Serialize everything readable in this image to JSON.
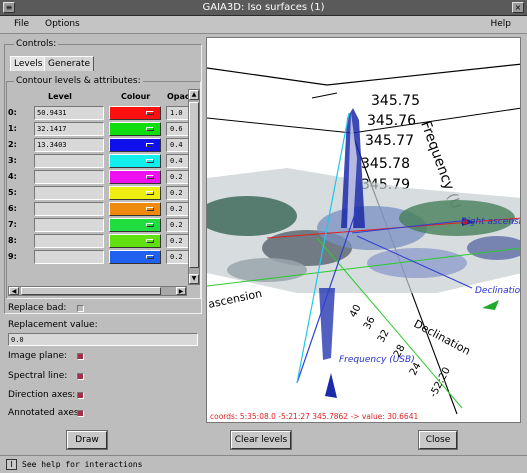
{
  "window": {
    "title": "GAIA3D: Iso surfaces (1)",
    "close_glyph": "×",
    "menu_glyph": "≡"
  },
  "menubar": {
    "file": "File",
    "options": "Options",
    "help": "Help"
  },
  "controls": {
    "group_label": "Controls:",
    "tabs": [
      "Levels",
      "Generate"
    ],
    "contour_group_label": "Contour levels & attributes:",
    "headers": {
      "level": "Level",
      "colour": "Colour",
      "opacity": "Opac"
    },
    "rows": [
      {
        "index": "0:",
        "level": "50.9431",
        "color": "#ff1010",
        "opacity": "1.0"
      },
      {
        "index": "1:",
        "level": "32.1417",
        "color": "#10dd10",
        "opacity": "0.6"
      },
      {
        "index": "2:",
        "level": "13.3403",
        "color": "#1010ee",
        "opacity": "0.4"
      },
      {
        "index": "3:",
        "level": "",
        "color": "#10eeee",
        "opacity": "0.4"
      },
      {
        "index": "4:",
        "level": "",
        "color": "#ee10ee",
        "opacity": "0.2"
      },
      {
        "index": "5:",
        "level": "",
        "color": "#eeee10",
        "opacity": "0.2"
      },
      {
        "index": "6:",
        "level": "",
        "color": "#ee8a10",
        "opacity": "0.2"
      },
      {
        "index": "7:",
        "level": "",
        "color": "#20dd40",
        "opacity": "0.2"
      },
      {
        "index": "8:",
        "level": "",
        "color": "#60e010",
        "opacity": "0.2"
      },
      {
        "index": "9:",
        "level": "",
        "color": "#2060ee",
        "opacity": "0.2"
      }
    ],
    "replace_bad_label": "Replace bad:",
    "replacement_value_label": "Replacement value:",
    "replacement_value": "0.0",
    "image_plane_label": "Image plane:",
    "spectral_line_label": "Spectral line:",
    "direction_axes_label": "Direction axes:",
    "annotated_axes_label": "Annotated axes:"
  },
  "viewer": {
    "freq_ticks": [
      "345.75",
      "345.76",
      "345.77",
      "345.78",
      "345.79"
    ],
    "freq_axis_label": "Frequency (U",
    "ra_axis_label": "ascension",
    "dec_axis_label": "Declination",
    "dec_ticks": [
      "40",
      "36",
      "32",
      "28",
      "24",
      "-52:20"
    ],
    "right_ascension_label": "Right ascensio",
    "declination_label": "Declinatio",
    "frequency_usb_label": "Frequency (USB)",
    "readout": "coords: 5:35:08.0 -5:21:27 345.7862 -> value: 30.6641"
  },
  "buttons": {
    "draw": "Draw",
    "clear_levels": "Clear levels",
    "close": "Close"
  },
  "status": {
    "icon": "I",
    "text": "See help for interactions"
  }
}
